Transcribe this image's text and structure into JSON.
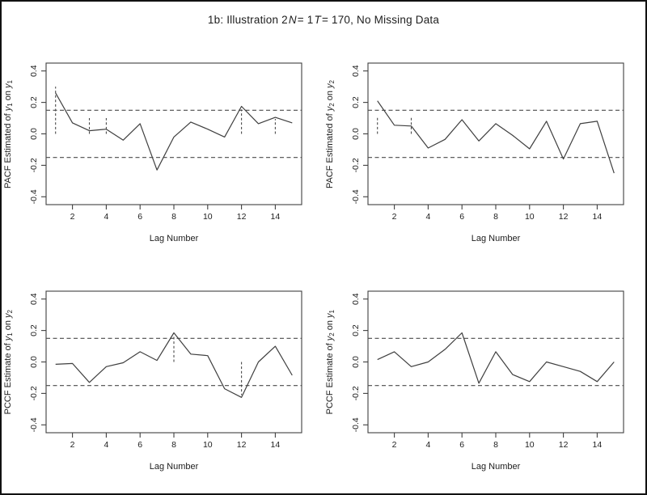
{
  "window": {
    "background": "#ffffff",
    "border_color": "#111111",
    "text_color": "#1d1d1d",
    "line_color": "#3f3f3f"
  },
  "title_parts": [
    {
      "t": "1b: Illustration 2 "
    },
    {
      "t": "N",
      "i": true
    },
    {
      "t": "= 1 "
    },
    {
      "t": "T",
      "i": true
    },
    {
      "t": "= 170, No Missing Data"
    }
  ],
  "title_text": "1b: Illustration 2 N= 1 T= 170, No Missing Data",
  "chart_data": {
    "type": "line",
    "layout": "2x2-grid",
    "xlabel": "Lag Number",
    "x": [
      1,
      2,
      3,
      4,
      5,
      6,
      7,
      8,
      9,
      10,
      11,
      12,
      13,
      14,
      15
    ],
    "xlim": [
      0.44,
      15.56
    ],
    "ylim": [
      -0.45,
      0.45
    ],
    "xticks": {
      "values": [
        2,
        4,
        6,
        8,
        10,
        12,
        14
      ],
      "labels": [
        "2",
        "4",
        "6",
        "8",
        "10",
        "12",
        "14"
      ]
    },
    "yticks": {
      "values": [
        -0.4,
        -0.2,
        0.0,
        0.2,
        0.4
      ],
      "labels": [
        "-0.4",
        "-0.2",
        "0.0",
        "0.2",
        "0.4"
      ]
    },
    "confidence_band": 0.15,
    "grid": false,
    "legend": "none",
    "plots": [
      {
        "position": "top-left",
        "ylabel_text": "PACF Estimated of y₁ on y₁",
        "ylabel_parts": [
          {
            "t": "PACF Estimated of "
          },
          {
            "t": "y",
            "i": true,
            "sub": "1"
          },
          {
            "t": " on "
          },
          {
            "t": "y",
            "i": true,
            "sub": "1"
          }
        ],
        "values": [
          0.26,
          0.07,
          0.02,
          0.03,
          -0.04,
          0.065,
          -0.23,
          -0.02,
          0.075,
          0.03,
          -0.02,
          0.175,
          0.065,
          0.105,
          0.07
        ],
        "significance_vlines": [
          {
            "x": 1,
            "y0": 0.0,
            "y1": 0.3
          },
          {
            "x": 3,
            "y0": 0.0,
            "y1": 0.1
          },
          {
            "x": 4,
            "y0": 0.0,
            "y1": 0.1
          },
          {
            "x": 12,
            "y0": 0.0,
            "y1": 0.155
          },
          {
            "x": 14,
            "y0": 0.0,
            "y1": 0.095
          }
        ]
      },
      {
        "position": "top-right",
        "ylabel_text": "PACF Estimated of y₂ on y₂",
        "ylabel_parts": [
          {
            "t": "PACF Estimated of "
          },
          {
            "t": "y",
            "i": true,
            "sub": "2"
          },
          {
            "t": " on "
          },
          {
            "t": "y",
            "i": true,
            "sub": "2"
          }
        ],
        "values": [
          0.21,
          0.055,
          0.05,
          -0.09,
          -0.035,
          0.09,
          -0.045,
          0.065,
          -0.01,
          -0.095,
          0.08,
          -0.16,
          0.065,
          0.08,
          -0.25
        ],
        "significance_vlines": [
          {
            "x": 1,
            "y0": 0.0,
            "y1": 0.105
          },
          {
            "x": 3,
            "y0": 0.0,
            "y1": 0.105
          }
        ]
      },
      {
        "position": "bottom-left",
        "ylabel_text": "PCCF Estimate of y₁ on y₂",
        "ylabel_parts": [
          {
            "t": "PCCF Estimate of "
          },
          {
            "t": "y",
            "i": true,
            "sub": "1"
          },
          {
            "t": " on "
          },
          {
            "t": "y",
            "i": true,
            "sub": "2"
          }
        ],
        "values": [
          -0.015,
          -0.01,
          -0.13,
          -0.03,
          -0.005,
          0.065,
          0.01,
          0.185,
          0.05,
          0.04,
          -0.17,
          -0.225,
          0.0,
          0.1,
          -0.085
        ],
        "significance_vlines": [
          {
            "x": 8,
            "y0": 0.0,
            "y1": 0.165
          },
          {
            "x": 12,
            "y0": 0.0,
            "y1": -0.21
          }
        ]
      },
      {
        "position": "bottom-right",
        "ylabel_text": "PCCF Estimate of y₂ on y₁",
        "ylabel_parts": [
          {
            "t": "PCCF Estimate of "
          },
          {
            "t": "y",
            "i": true,
            "sub": "2"
          },
          {
            "t": " on "
          },
          {
            "t": "y",
            "i": true,
            "sub": "1"
          }
        ],
        "values": [
          0.015,
          0.065,
          -0.03,
          0.0,
          0.08,
          0.185,
          -0.135,
          0.065,
          -0.08,
          -0.125,
          0.0,
          -0.03,
          -0.06,
          -0.125,
          0.0
        ],
        "significance_vlines": []
      }
    ]
  }
}
